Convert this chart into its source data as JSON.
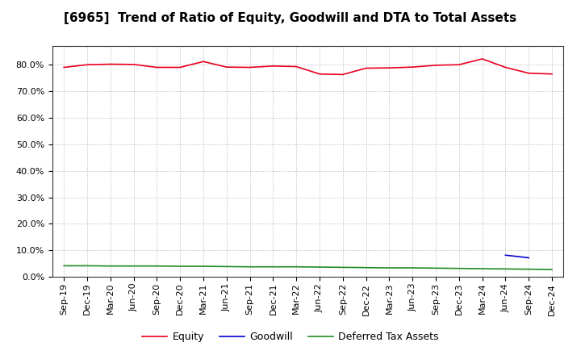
{
  "title": "[6965]  Trend of Ratio of Equity, Goodwill and DTA to Total Assets",
  "x_labels": [
    "Sep-19",
    "Dec-19",
    "Mar-20",
    "Jun-20",
    "Sep-20",
    "Dec-20",
    "Mar-21",
    "Jun-21",
    "Sep-21",
    "Dec-21",
    "Mar-22",
    "Jun-22",
    "Sep-22",
    "Dec-22",
    "Mar-23",
    "Jun-23",
    "Sep-23",
    "Dec-23",
    "Mar-24",
    "Jun-24",
    "Sep-24",
    "Dec-24"
  ],
  "equity": [
    79.0,
    80.0,
    80.2,
    80.1,
    79.0,
    79.0,
    81.2,
    79.1,
    79.0,
    79.5,
    79.3,
    76.5,
    76.3,
    78.7,
    78.8,
    79.1,
    79.8,
    80.0,
    82.2,
    79.0,
    76.8,
    76.5
  ],
  "goodwill": [
    null,
    null,
    null,
    null,
    null,
    null,
    null,
    null,
    null,
    null,
    null,
    null,
    null,
    null,
    null,
    null,
    null,
    null,
    null,
    8.2,
    7.2,
    null
  ],
  "dta": [
    4.2,
    4.2,
    4.1,
    4.1,
    4.1,
    4.0,
    4.0,
    3.9,
    3.8,
    3.8,
    3.8,
    3.7,
    3.6,
    3.5,
    3.4,
    3.4,
    3.3,
    3.2,
    3.1,
    3.0,
    2.9,
    2.8
  ],
  "equity_color": "#e8001c",
  "goodwill_color": "#0000cd",
  "dta_color": "#228B22",
  "background_color": "#ffffff",
  "grid_color": "#aaaaaa",
  "ylim": [
    0,
    87
  ],
  "yticks": [
    0,
    10,
    20,
    30,
    40,
    50,
    60,
    70,
    80
  ],
  "legend_labels": [
    "Equity",
    "Goodwill",
    "Deferred Tax Assets"
  ],
  "title_fontsize": 11,
  "tick_fontsize": 8,
  "legend_fontsize": 9
}
